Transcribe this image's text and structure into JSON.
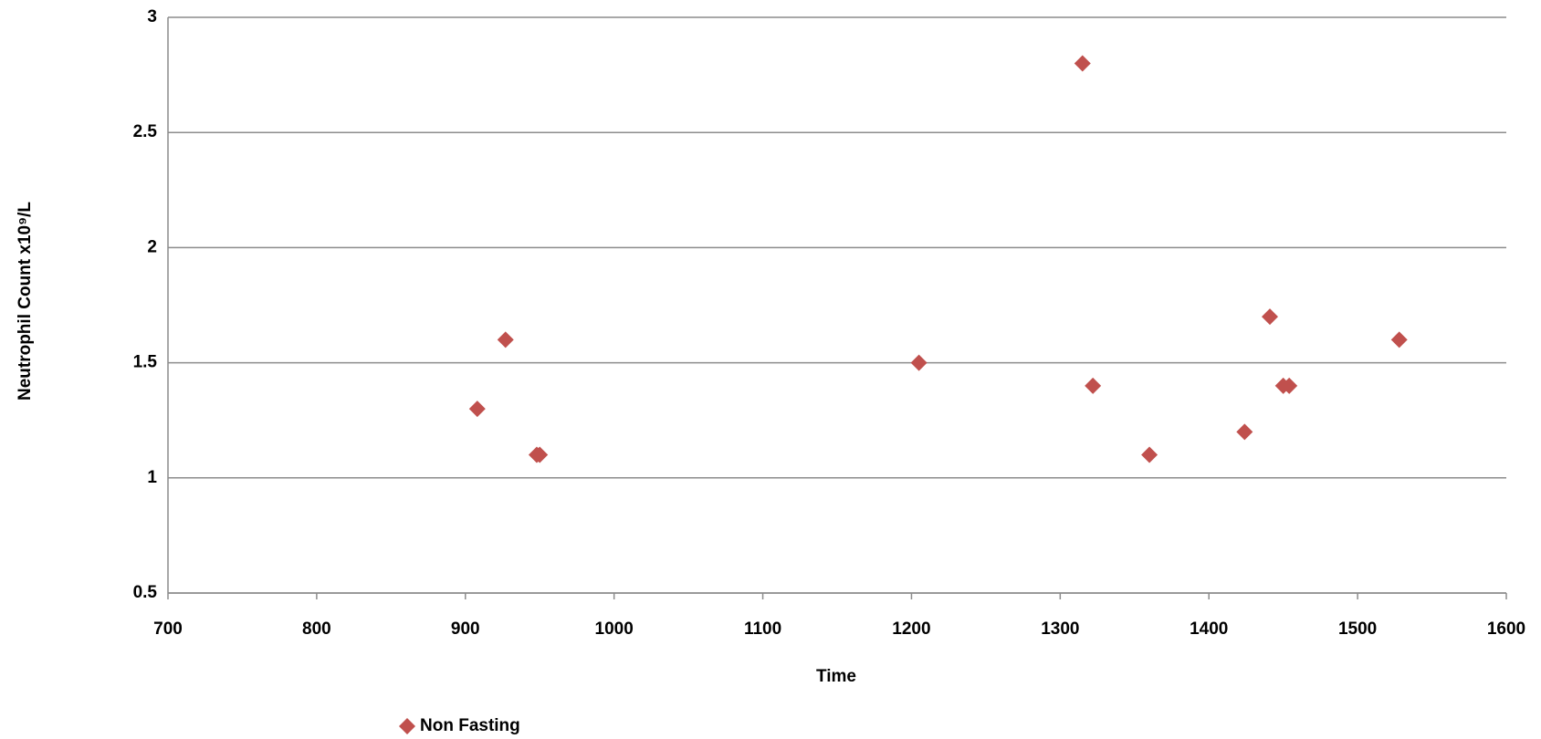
{
  "chart_data": {
    "type": "scatter",
    "x_label": "Time",
    "y_label": "Neutrophil Count x10⁹/L",
    "series": [
      {
        "name": "Non Fasting",
        "color": "#c0504d",
        "x": [
          908,
          927,
          948,
          950,
          1205,
          1315,
          1322,
          1360,
          1424,
          1441,
          1450,
          1454,
          1528
        ],
        "values": [
          1.3,
          1.6,
          1.1,
          1.1,
          1.5,
          2.8,
          1.4,
          1.1,
          1.2,
          1.7,
          1.4,
          1.4,
          1.6
        ]
      }
    ],
    "xlim": [
      700,
      1600
    ],
    "xticks": [
      700,
      800,
      900,
      1000,
      1100,
      1200,
      1300,
      1400,
      1500,
      1600
    ],
    "ylim": [
      0.5,
      3
    ],
    "yticks": [
      0.5,
      1,
      1.5,
      2,
      2.5,
      3
    ],
    "grid": true,
    "legend": "bottom-left"
  }
}
